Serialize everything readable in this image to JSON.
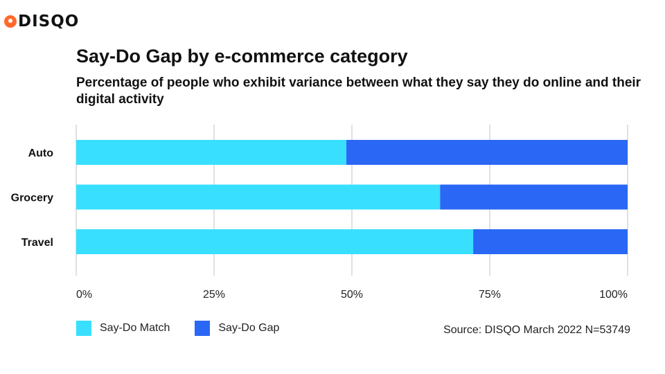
{
  "brand": {
    "name": "DISQO"
  },
  "title": "Say-Do Gap by e-commerce category",
  "subtitle": "Percentage of people who exhibit variance between what they say they do online and their digital activity",
  "source": "Source: DISQO March 2022 N=53749",
  "colors": {
    "match": "#39dfff",
    "gap": "#2a67f5",
    "grid": "#d6d6d6",
    "logo": "#ff6a2b"
  },
  "chart_data": {
    "type": "bar",
    "orientation": "horizontal",
    "stacked": true,
    "title": "Say-Do Gap by e-commerce category",
    "categories": [
      "Auto",
      "Grocery",
      "Travel"
    ],
    "series": [
      {
        "name": "Say-Do Match",
        "values": [
          49,
          66,
          72
        ]
      },
      {
        "name": "Say-Do Gap",
        "values": [
          51,
          34,
          28
        ]
      }
    ],
    "xlim": [
      0,
      100
    ],
    "xticks": [
      0,
      25,
      50,
      75,
      100
    ],
    "xtick_labels": [
      "0%",
      "25%",
      "50%",
      "75%",
      "100%"
    ],
    "grid": true,
    "legend": "bottom-left"
  }
}
